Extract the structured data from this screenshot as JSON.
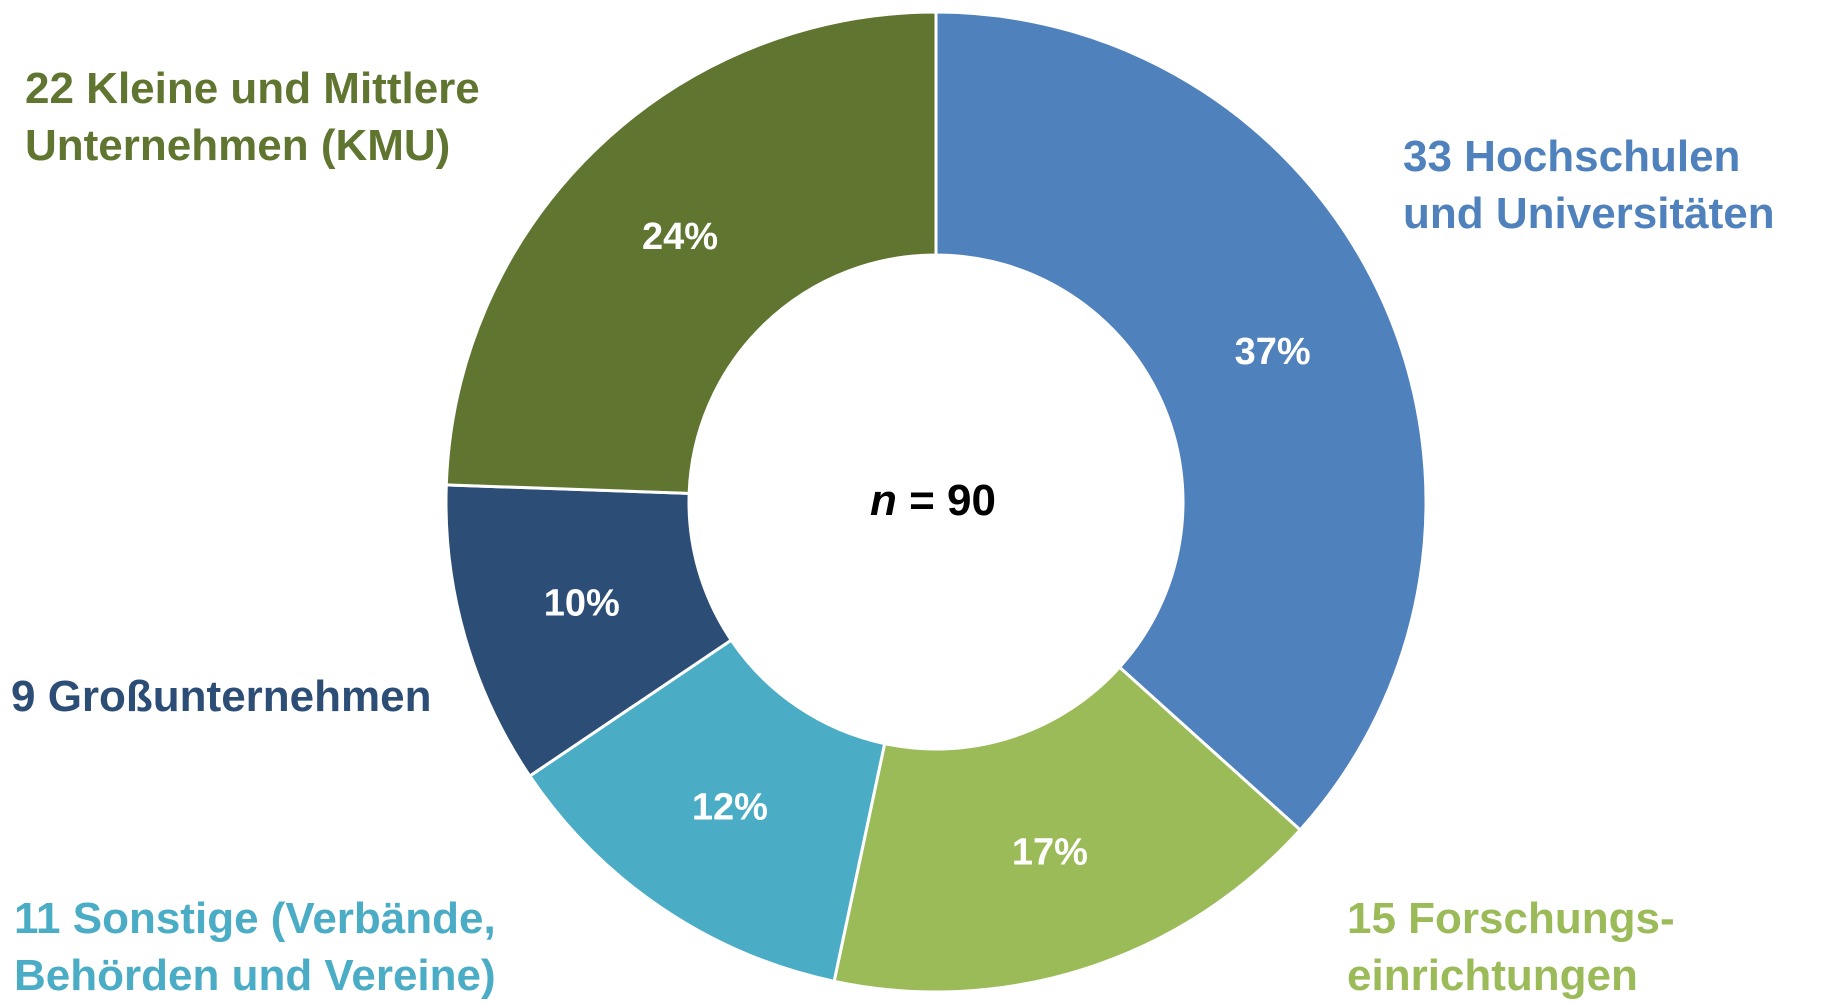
{
  "chart_data": {
    "type": "pie",
    "center_label": {
      "variable": "n",
      "equals": "= 90"
    },
    "total": 90,
    "slices": [
      {
        "count": 33,
        "percent_label": "37%",
        "label": "33 Hochschulen\nund Universitäten",
        "color": "#4F81BD"
      },
      {
        "count": 15,
        "percent_label": "17%",
        "label": "15 Forschungs-\neinrichtungen",
        "color": "#9BBB59"
      },
      {
        "count": 11,
        "percent_label": "12%",
        "label": "11 Sonstige (Verbände,\nBehörden und Vereine)",
        "color": "#4BACC6"
      },
      {
        "count": 9,
        "percent_label": "10%",
        "label": "9 Großunternehmen",
        "color": "#2C4D75"
      },
      {
        "count": 22,
        "percent_label": "24%",
        "label": "22 Kleine und Mittlere\nUnternehmen (KMU)",
        "color": "#5F7530"
      }
    ]
  }
}
